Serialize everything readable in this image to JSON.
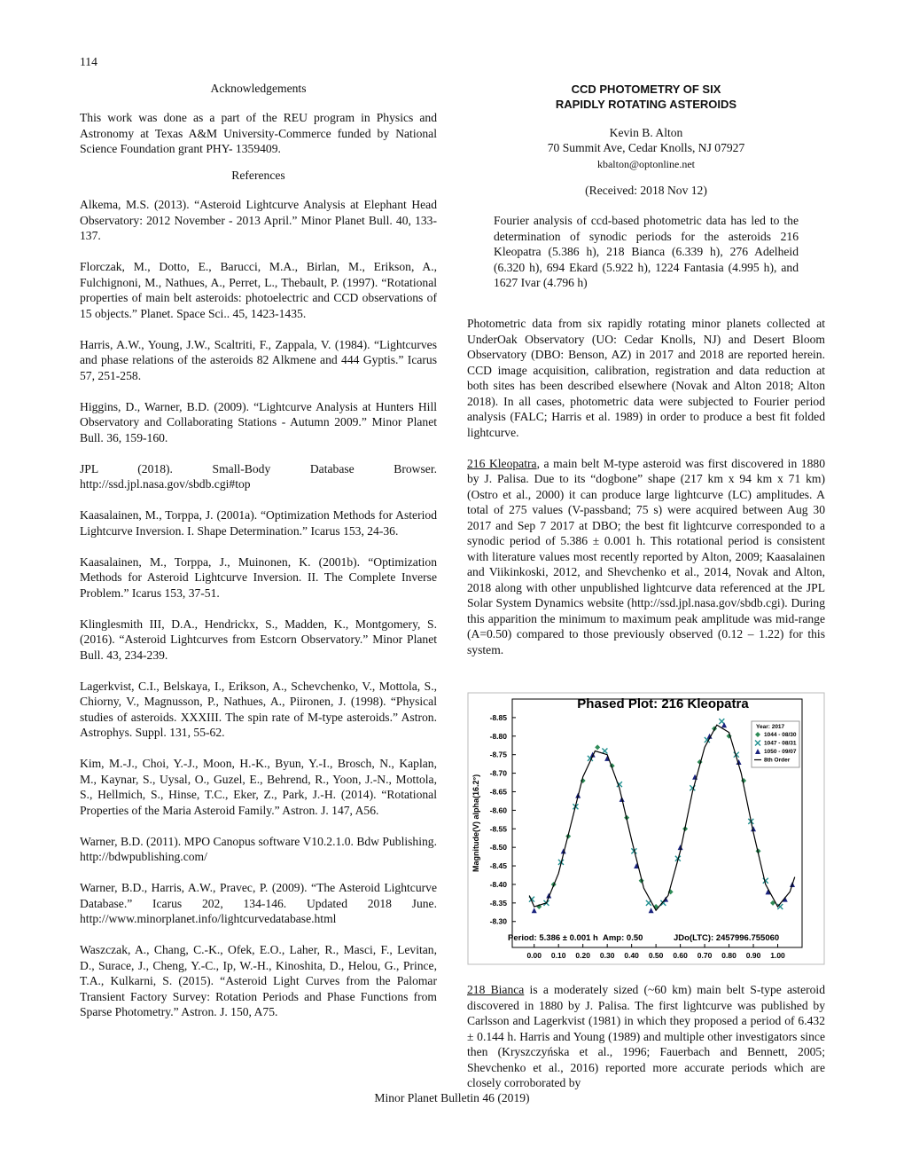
{
  "page_number": "114",
  "acknowledgements": {
    "heading": "Acknowledgements",
    "text": "This work was done as a part of the REU program in Physics and Astronomy at Texas A&M University-Commerce funded by National Science Foundation grant PHY- 1359409."
  },
  "references": {
    "heading": "References",
    "items": [
      "Alkema, M.S. (2013). “Asteroid Lightcurve Analysis at Elephant Head Observatory: 2012 November - 2013 April.” Minor Planet Bull. 40, 133-137.",
      "Florczak, M., Dotto, E., Barucci, M.A., Birlan, M., Erikson, A., Fulchignoni, M., Nathues, A., Perret, L., Thebault, P. (1997). “Rotational properties of main belt asteroids: photoelectric and CCD observations of 15 objects.” Planet. Space Sci.. 45, 1423-1435.",
      "Harris, A.W., Young, J.W., Scaltriti, F., Zappala, V. (1984). “Lightcurves and phase relations of the asteroids 82 Alkmene and 444 Gyptis.” Icarus 57, 251-258.",
      "Higgins, D., Warner, B.D. (2009). “Lightcurve Analysis at Hunters Hill Observatory and Collaborating Stations - Autumn 2009.” Minor Planet Bull. 36, 159-160.",
      "JPL (2018). Small-Body Database Browser. http://ssd.jpl.nasa.gov/sbdb.cgi#top",
      "Kaasalainen, M., Torppa, J. (2001a). “Optimization Methods for Asteriod Lightcurve Inversion. I. Shape Determination.” Icarus 153, 24-36.",
      "Kaasalainen, M., Torppa, J., Muinonen, K. (2001b). “Optimization Methods for Asteroid Lightcurve Inversion. II. The Complete Inverse Problem.” Icarus 153, 37-51.",
      "Klinglesmith III, D.A., Hendrickx, S., Madden, K., Montgomery, S. (2016). “Asteroid Lightcurves from Estcorn Observatory.” Minor Planet Bull. 43, 234-239.",
      "Lagerkvist, C.I., Belskaya, I., Erikson, A., Schevchenko, V., Mottola, S., Chiorny, V., Magnusson, P., Nathues, A., Piironen, J. (1998). “Physical studies of asteroids. XXXIII. The spin rate of M-type asteroids.” Astron. Astrophys. Suppl. 131, 55-62.",
      "Kim, M.-J., Choi, Y.-J., Moon, H.-K., Byun, Y.-I., Brosch, N., Kaplan, M., Kaynar, S., Uysal, O., Guzel, E., Behrend, R., Yoon, J.-N., Mottola, S., Hellmich, S., Hinse, T.C., Eker, Z., Park, J.-H. (2014). “Rotational Properties of the Maria Asteroid Family.” Astron. J. 147, A56.",
      "Warner, B.D. (2011). MPO Canopus software V10.2.1.0. Bdw Publishing. http://bdwpublishing.com/",
      "Warner, B.D., Harris, A.W., Pravec, P. (2009). “The Asteroid Lightcurve Database.” Icarus 202, 134-146. Updated 2018 June. http://www.minorplanet.info/lightcurvedatabase.html",
      "Waszczak, A., Chang, C.-K., Ofek, E.O., Laher, R., Masci, F., Levitan, D., Surace, J., Cheng, Y.-C., Ip, W.-H., Kinoshita, D., Helou, G., Prince, T.A., Kulkarni, S. (2015). “Asteroid Light Curves from the Palomar Transient Factory Survey: Rotation Periods and Phase Functions from Sparse Photometry.” Astron. J. 150, A75."
    ]
  },
  "article": {
    "title_lines": [
      "CCD PHOTOMETRY OF SIX",
      "RAPIDLY ROTATING ASTEROIDS"
    ],
    "author": "Kevin B. Alton",
    "address": "70 Summit Ave, Cedar Knolls, NJ 07927",
    "email": "kbalton@optonline.net",
    "received": "(Received: 2018 Nov 12)",
    "abstract": "Fourier analysis of ccd-based photometric data has led to the determination of synodic periods for the asteroids 216 Kleopatra (5.386 h), 218 Bianca (6.339 h), 276 Adelheid (6.320 h), 694 Ekard (5.922 h), 1224 Fantasia (4.995 h), and 1627 Ivar (4.796 h)",
    "paragraphs": [
      {
        "text": "Photometric data from six rapidly rotating minor planets collected at UnderOak Observatory (UO: Cedar Knolls, NJ) and Desert Bloom Observatory (DBO: Benson, AZ) in 2017 and 2018 are reported herein. CCD image acquisition, calibration, registration and data reduction at both sites has been described elsewhere (Novak and Alton 2018; Alton 2018). In all cases, photometric data were subjected to Fourier period analysis (FALC; Harris et al. 1989) in order to produce a best fit folded lightcurve."
      },
      {
        "lead": "216 Kleopatra",
        "text": ", a main belt M-type asteroid was first discovered in 1880 by J. Palisa. Due to its “dogbone” shape (217 km x 94 km x 71 km) (Ostro et al., 2000) it can produce large lightcurve (LC) amplitudes. A total of 275 values (V-passband; 75 s) were acquired between Aug 30 2017 and Sep 7 2017 at DBO; the best fit lightcurve corresponded to a synodic period of 5.386 ± 0.001 h. This rotational period is consistent with literature values most recently reported by Alton, 2009; Kaasalainen and Viikinkoski, 2012, and Shevchenko et al., 2014, Novak and Alton, 2018 along with other unpublished lightcurve data referenced at the JPL Solar System Dynamics website (http://ssd.jpl.nasa.gov/sbdb.cgi). During this apparition the minimum to maximum peak amplitude was mid-range (A=0.50) compared to those previously observed (0.12 – 1.22) for this system."
      },
      {
        "lead": "218 Bianca",
        "text": " is a moderately sized (~60 km) main belt S-type asteroid discovered in 1880 by J. Palisa. The first lightcurve was published by Carlsson and Lagerkvist (1981) in which they proposed a period of 6.432 ± 0.144 h. Harris and Young (1989) and multiple other investigators since then (Kryszczyńska et al., 1996; Fauerbach and Bennett, 2005; Shevchenko et al., 2016) reported more accurate periods which are closely corroborated by"
      }
    ]
  },
  "chart_data": {
    "type": "scatter",
    "title": "Phased Plot: 216 Kleopatra",
    "y_label": "Magnitude(V) alpha(16.2°)",
    "legend_title": "Year: 2017",
    "legend": "top-right",
    "annotations": [
      "Period: 5.386 ± 0.001 h",
      "Amp: 0.50",
      "JDo(LTC): 2457996.755060"
    ],
    "xlim": [
      -0.09,
      1.1
    ],
    "ylim": [
      -8.23,
      -8.9
    ],
    "xticks": [
      {
        "value": 0,
        "label": "0.00"
      },
      {
        "value": 0.1,
        "label": "0.10"
      },
      {
        "value": 0.2,
        "label": "0.20"
      },
      {
        "value": 0.3,
        "label": "0.30"
      },
      {
        "value": 0.4,
        "label": "0.40"
      },
      {
        "value": 0.5,
        "label": "0.50"
      },
      {
        "value": 0.6,
        "label": "0.60"
      },
      {
        "value": 0.7,
        "label": "0.70"
      },
      {
        "value": 0.8,
        "label": "0.80"
      },
      {
        "value": 0.9,
        "label": "0.90"
      },
      {
        "value": 1,
        "label": "1.00"
      }
    ],
    "yticks": [
      -8.85,
      {
        "value": -8.8,
        "label": "-8.80"
      },
      -8.75,
      {
        "value": -8.7,
        "label": "-8.70"
      },
      -8.65,
      {
        "value": -8.6,
        "label": "-8.60"
      },
      -8.55,
      {
        "value": -8.5,
        "label": "-8.50"
      },
      -8.45,
      {
        "value": -8.4,
        "label": "-8.40"
      },
      -8.35,
      {
        "value": -8.3,
        "label": "-8.30"
      }
    ],
    "series": [
      {
        "name": "1044 - 08/30",
        "color": "#2e8b57",
        "marker": "diamond",
        "x": [
          0.02,
          0.08,
          0.14,
          0.2,
          0.26,
          0.32,
          0.38,
          0.44,
          0.5,
          0.56,
          0.62,
          0.68,
          0.74,
          0.8,
          0.86,
          0.92,
          0.98
        ],
        "values": [
          -8.34,
          -8.4,
          -8.53,
          -8.68,
          -8.77,
          -8.72,
          -8.58,
          -8.41,
          -8.34,
          -8.38,
          -8.55,
          -8.73,
          -8.82,
          -8.8,
          -8.68,
          -8.49,
          -8.35
        ]
      },
      {
        "name": "1047 - 08/31",
        "color": "#1f8f8f",
        "marker": "x",
        "x": [
          -0.01,
          0.05,
          0.11,
          0.17,
          0.23,
          0.29,
          0.35,
          0.41,
          0.47,
          0.53,
          0.59,
          0.65,
          0.71,
          0.77,
          0.83,
          0.89,
          0.95,
          1.01
        ],
        "values": [
          -8.36,
          -8.35,
          -8.46,
          -8.61,
          -8.74,
          -8.76,
          -8.67,
          -8.49,
          -8.35,
          -8.35,
          -8.47,
          -8.66,
          -8.79,
          -8.84,
          -8.75,
          -8.57,
          -8.41,
          -8.34
        ]
      },
      {
        "name": "1050 - 09/07",
        "color": "#1a237e",
        "marker": "triangle",
        "x": [
          0,
          0.06,
          0.12,
          0.18,
          0.24,
          0.3,
          0.36,
          0.42,
          0.48,
          0.54,
          0.6,
          0.66,
          0.72,
          0.78,
          0.84,
          0.9,
          0.96,
          1.03,
          1.06
        ],
        "values": [
          -8.33,
          -8.37,
          -8.49,
          -8.64,
          -8.75,
          -8.74,
          -8.63,
          -8.45,
          -8.33,
          -8.36,
          -8.5,
          -8.69,
          -8.8,
          -8.83,
          -8.73,
          -8.55,
          -8.38,
          -8.36,
          -8.4
        ]
      },
      {
        "name": "8th Order",
        "color": "#000000",
        "marker": "line",
        "x": [
          -0.02,
          0,
          0.05,
          0.1,
          0.15,
          0.2,
          0.25,
          0.3,
          0.35,
          0.4,
          0.45,
          0.5,
          0.55,
          0.6,
          0.65,
          0.7,
          0.75,
          0.8,
          0.85,
          0.9,
          0.95,
          1,
          1.05,
          1.07
        ],
        "values": [
          -8.37,
          -8.34,
          -8.35,
          -8.43,
          -8.56,
          -8.69,
          -8.76,
          -8.75,
          -8.66,
          -8.52,
          -8.39,
          -8.33,
          -8.37,
          -8.49,
          -8.65,
          -8.77,
          -8.83,
          -8.81,
          -8.7,
          -8.54,
          -8.4,
          -8.34,
          -8.38,
          -8.42
        ]
      }
    ]
  },
  "footer": "Minor Planet Bulletin 46 (2019)"
}
